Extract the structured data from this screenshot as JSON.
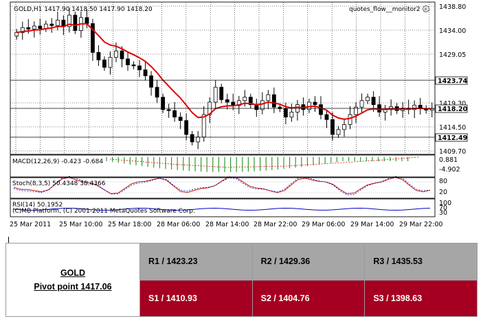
{
  "chart": {
    "header": "GOLD,H1  1417.90 1418.50 1417.90 1418.20",
    "indicator_name": "quotes_flow__monitor2",
    "copyright": "(C)MB Platform, (C) 2001-2011 MetaQuotes Software Corp.",
    "price_axis": {
      "ticks": [
        "1438.80",
        "1434.00",
        "1429.05",
        "1419.30",
        "1414.50",
        "1409.70"
      ],
      "current_price": "1418.20",
      "line_upper": "1423.74",
      "line_lower": "1412.49"
    },
    "macd": {
      "label": "MACD(12,26,9) -0.423 -0.684",
      "ticks": [
        "0.881",
        "-4.902"
      ]
    },
    "stoch": {
      "label": "Stoch(8,3,5) 50.4348 38.4366",
      "ticks": [
        "80",
        "20"
      ]
    },
    "rsi": {
      "label": "RSI(14) 50.1952",
      "ticks": [
        "100",
        "70",
        "30"
      ]
    },
    "time_labels": [
      "25 Mar 2011",
      "25 Mar 10:00",
      "25 Mar 18:00",
      "28 Mar 06:00",
      "28 Mar 14:00",
      "28 Mar 22:00",
      "29 Mar 06:00",
      "29 Mar 14:00",
      "29 Mar 22:00"
    ]
  },
  "pivot": {
    "asset": "GOLD",
    "pivot_label": "Pivot point 1417.06",
    "resistance": [
      "R1 / 1423.23",
      "R2 / 1429.36",
      "R3 / 1435.53"
    ],
    "support": [
      "S1 / 1410.93",
      "S2 / 1404.76",
      "S3 / 1398.63"
    ]
  },
  "colors": {
    "resistance_bg": "#a6a6a6",
    "support_bg": "#a50021",
    "moving_average": "#e00000",
    "macd_hist": "#2a9d2a"
  }
}
